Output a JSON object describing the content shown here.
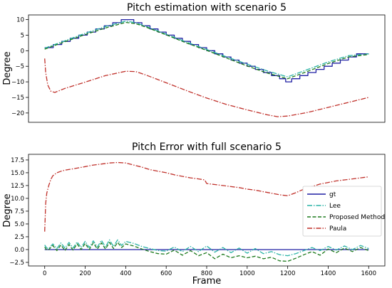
{
  "chart_data": [
    {
      "type": "line",
      "title": "Pitch estimation with scenario 5",
      "xlabel": "",
      "ylabel": "Degree",
      "xlim": [
        -80,
        1680
      ],
      "ylim": [
        -23,
        11.5
      ],
      "xticks": [],
      "yticks": [
        -20,
        -15,
        -10,
        -5,
        0,
        5,
        10
      ],
      "ytick_labels": [
        "−20",
        "−15",
        "−10",
        "−5",
        "0",
        "5",
        "10"
      ],
      "grid": false,
      "legend": "none",
      "series": [
        {
          "id": "gt",
          "style": "steps",
          "color": "#1f1fa3",
          "x": [
            0,
            42,
            84,
            126,
            168,
            210,
            252,
            294,
            336,
            378,
            400,
            420,
            440,
            480,
            520,
            560,
            600,
            640,
            680,
            720,
            760,
            800,
            840,
            880,
            920,
            960,
            1000,
            1040,
            1080,
            1120,
            1160,
            1190,
            1220,
            1260,
            1300,
            1340,
            1380,
            1420,
            1460,
            1500,
            1540,
            1580,
            1600
          ],
          "y": [
            1,
            2,
            3,
            4,
            5,
            6,
            7,
            8,
            9,
            10,
            10,
            10,
            9,
            8,
            7,
            6,
            5,
            4,
            3,
            2,
            1,
            0,
            -1,
            -2,
            -3,
            -4,
            -5,
            -6,
            -7,
            -8,
            -9,
            -10,
            -9,
            -8,
            -7,
            -6,
            -5,
            -4,
            -3,
            -2,
            -1,
            -1,
            -1
          ]
        },
        {
          "id": "lee",
          "style": "dashdot",
          "color": "#2ab3a6",
          "x": [
            0,
            100,
            200,
            300,
            400,
            450,
            500,
            600,
            700,
            800,
            900,
            1000,
            1100,
            1200,
            1300,
            1400,
            1500,
            1600
          ],
          "y": [
            0.8,
            3.2,
            5.6,
            7.8,
            9.5,
            9.0,
            7.8,
            5.3,
            2.8,
            0.4,
            -2.0,
            -4.3,
            -6.5,
            -8.4,
            -6.0,
            -3.6,
            -1.6,
            -1.0
          ]
        },
        {
          "id": "proposed",
          "style": "dashed",
          "color": "#1d7a1d",
          "x": [
            0,
            100,
            200,
            300,
            400,
            450,
            500,
            600,
            700,
            800,
            900,
            1000,
            1100,
            1200,
            1300,
            1400,
            1500,
            1600
          ],
          "y": [
            0.5,
            2.9,
            5.2,
            7.3,
            9.1,
            8.7,
            7.6,
            5.1,
            2.5,
            0.1,
            -2.4,
            -4.9,
            -7.2,
            -9.0,
            -6.6,
            -4.1,
            -2.0,
            -1.2
          ]
        },
        {
          "id": "paula",
          "style": "dashdot",
          "color": "#c0312b",
          "x": [
            0,
            5,
            15,
            30,
            50,
            100,
            200,
            300,
            400,
            450,
            500,
            600,
            700,
            800,
            900,
            1000,
            1100,
            1150,
            1200,
            1300,
            1400,
            1500,
            1600
          ],
          "y": [
            -2.5,
            -7,
            -11,
            -13,
            -13.4,
            -12.1,
            -10.1,
            -8.0,
            -6.6,
            -6.7,
            -7.8,
            -10.3,
            -12.8,
            -15.2,
            -17.3,
            -19.0,
            -20.6,
            -21.2,
            -21.0,
            -19.8,
            -18.2,
            -16.6,
            -15.0
          ]
        }
      ]
    },
    {
      "type": "line",
      "title": "Pitch Error with full scenario 5",
      "xlabel": "Frame",
      "ylabel": "Degree",
      "xlim": [
        -80,
        1680
      ],
      "ylim": [
        -3.2,
        18.6
      ],
      "xticks": [
        0,
        200,
        400,
        600,
        800,
        1000,
        1200,
        1400,
        1600
      ],
      "yticks": [
        -2.5,
        0.0,
        2.5,
        5.0,
        7.5,
        10.0,
        12.5,
        15.0,
        17.5
      ],
      "ytick_labels": [
        "−2.5",
        "0.0",
        "2.5",
        "5.0",
        "7.5",
        "10.0",
        "12.5",
        "15.0",
        "17.5"
      ],
      "grid": false,
      "legend": "center-right",
      "series": [
        {
          "name": "gt",
          "style": "solid",
          "color": "#1f1fa3",
          "x": [
            0,
            1600
          ],
          "y": [
            0,
            0
          ]
        },
        {
          "name": "Lee",
          "style": "dashdot",
          "color": "#2ab3a6",
          "x": [
            0,
            10,
            20,
            40,
            60,
            80,
            100,
            120,
            140,
            160,
            180,
            200,
            220,
            240,
            260,
            280,
            300,
            320,
            340,
            360,
            380,
            400,
            420,
            440,
            460,
            480,
            520,
            560,
            600,
            640,
            680,
            720,
            760,
            800,
            840,
            880,
            920,
            960,
            1000,
            1040,
            1080,
            1120,
            1160,
            1200,
            1240,
            1280,
            1320,
            1360,
            1400,
            1440,
            1480,
            1520,
            1560,
            1600
          ],
          "y": [
            0.9,
            0.3,
            0.2,
            1.1,
            0.2,
            1.3,
            0.3,
            1.4,
            0.3,
            1.5,
            0.4,
            1.6,
            0.4,
            1.7,
            0.5,
            1.8,
            0.5,
            1.9,
            0.6,
            1.9,
            0.8,
            1.6,
            1.4,
            1.2,
            0.9,
            0.6,
            0.2,
            -0.2,
            -0.3,
            0.5,
            -0.4,
            0.6,
            -0.4,
            0.7,
            -0.5,
            0.4,
            -0.6,
            0.3,
            -0.7,
            0.2,
            -0.8,
            -0.4,
            -1.0,
            -1.2,
            -0.8,
            -0.2,
            0.4,
            -0.2,
            0.6,
            -0.1,
            0.7,
            0.0,
            0.8,
            0.2
          ]
        },
        {
          "name": "Proposed Method",
          "style": "dashed",
          "color": "#1d7a1d",
          "x": [
            0,
            10,
            20,
            40,
            60,
            80,
            100,
            120,
            140,
            160,
            180,
            200,
            220,
            240,
            260,
            280,
            300,
            320,
            340,
            360,
            380,
            400,
            420,
            440,
            460,
            480,
            520,
            560,
            600,
            640,
            680,
            720,
            760,
            800,
            840,
            880,
            920,
            960,
            1000,
            1040,
            1080,
            1120,
            1160,
            1200,
            1240,
            1280,
            1320,
            1360,
            1400,
            1440,
            1480,
            1520,
            1560,
            1600
          ],
          "y": [
            0.5,
            -0.1,
            0.0,
            0.8,
            -0.2,
            0.9,
            -0.2,
            1.0,
            -0.1,
            1.1,
            0.0,
            1.2,
            0.0,
            1.3,
            0.1,
            1.3,
            0.1,
            1.4,
            0.2,
            1.4,
            0.4,
            1.1,
            0.9,
            0.7,
            0.4,
            0.1,
            -0.4,
            -0.8,
            -0.9,
            -0.1,
            -1.1,
            -0.2,
            -1.2,
            -0.6,
            -1.8,
            -0.9,
            -1.6,
            -1.2,
            -1.6,
            -1.3,
            -1.8,
            -1.5,
            -2.2,
            -2.3,
            -1.7,
            -1.0,
            -0.4,
            -1.1,
            0.1,
            -0.6,
            0.3,
            -0.4,
            0.4,
            -0.2
          ]
        },
        {
          "name": "Paula",
          "style": "dashdot",
          "color": "#c0312b",
          "x": [
            0,
            5,
            10,
            20,
            30,
            40,
            60,
            80,
            100,
            130,
            160,
            200,
            240,
            280,
            320,
            360,
            400,
            440,
            480,
            520,
            560,
            600,
            640,
            680,
            720,
            760,
            790,
            800,
            840,
            880,
            920,
            960,
            1000,
            1040,
            1080,
            1120,
            1160,
            1200,
            1240,
            1280,
            1320,
            1360,
            1400,
            1440,
            1480,
            1520,
            1560,
            1600
          ],
          "y": [
            3.5,
            9.0,
            11.0,
            12.5,
            13.7,
            14.4,
            15.0,
            15.3,
            15.5,
            15.7,
            15.9,
            16.2,
            16.5,
            16.7,
            16.9,
            17.0,
            16.9,
            16.5,
            16.1,
            15.6,
            15.3,
            15.0,
            14.6,
            14.3,
            14.0,
            13.8,
            13.6,
            12.9,
            12.7,
            12.5,
            12.3,
            12.1,
            11.8,
            11.6,
            11.3,
            11.0,
            10.7,
            10.5,
            11.1,
            11.8,
            12.3,
            12.8,
            13.1,
            13.4,
            13.6,
            13.8,
            14.0,
            14.2
          ]
        }
      ]
    }
  ]
}
